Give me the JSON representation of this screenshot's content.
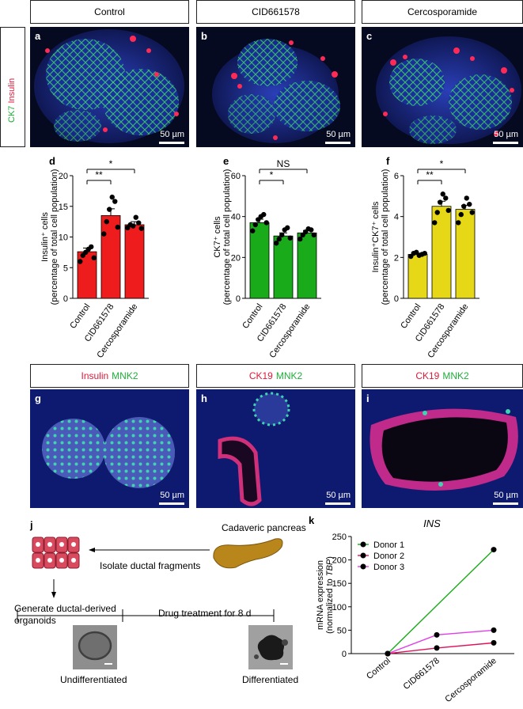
{
  "top_row": {
    "headers": [
      "Control",
      "CID661578",
      "Cercosporamide"
    ],
    "panel_letters": [
      "a",
      "b",
      "c"
    ],
    "stain_labels": {
      "ck7": "CK7",
      "insulin": "Insulin"
    },
    "scale_bar": "50 µm"
  },
  "bar_charts": [
    {
      "letter": "d",
      "type": "bar",
      "ylabel_main": "Insulin⁺ cells",
      "ylabel_sub": "(percentage of total cell population)",
      "categories": [
        "Control",
        "CID661578",
        "Cercosporamide"
      ],
      "values": [
        7.6,
        13.5,
        12.0
      ],
      "errors": [
        0.6,
        1.1,
        0.5
      ],
      "points": [
        [
          6.0,
          7.0,
          7.5,
          8.0,
          8.4,
          6.6
        ],
        [
          10.5,
          12.5,
          14.5,
          16.5,
          15.8,
          11.6
        ],
        [
          11.5,
          12.0,
          11.8,
          13.2,
          12.3,
          11.4
        ]
      ],
      "ylim": [
        0,
        20
      ],
      "yticks": [
        0,
        5,
        10,
        15,
        20
      ],
      "color": "#ee1c1c",
      "significance": [
        {
          "from": 0,
          "to": 1,
          "label": "**"
        },
        {
          "from": 0,
          "to": 2,
          "label": "*"
        }
      ]
    },
    {
      "letter": "e",
      "type": "bar",
      "ylabel_main": "CK7⁺ cells",
      "ylabel_sub": "(percentage of total cell population)",
      "categories": [
        "Control",
        "CID661578",
        "Cercosporamide"
      ],
      "values": [
        37.0,
        30.5,
        32.0
      ],
      "errors": [
        1.7,
        1.5,
        1.2
      ],
      "points": [
        [
          33.0,
          36.0,
          38.5,
          40.0,
          41.0,
          37.0
        ],
        [
          27.0,
          29.0,
          31.0,
          33.5,
          34.5,
          29.5
        ],
        [
          29.0,
          31.0,
          32.5,
          34.0,
          33.5,
          31.0
        ]
      ],
      "ylim": [
        0,
        60
      ],
      "yticks": [
        0,
        20,
        40,
        60
      ],
      "color": "#1aab1a",
      "significance": [
        {
          "from": 0,
          "to": 1,
          "label": "*"
        },
        {
          "from": 0,
          "to": 2,
          "label": "NS"
        }
      ]
    },
    {
      "letter": "f",
      "type": "bar",
      "ylabel_main": "Insulin⁺CK7⁺ cells",
      "ylabel_sub": "(percentage of total cell population)",
      "categories": [
        "Control",
        "CID661578",
        "Cercosporamide"
      ],
      "values": [
        2.15,
        4.5,
        4.35
      ],
      "errors": [
        0.06,
        0.25,
        0.2
      ],
      "points": [
        [
          2.05,
          2.2,
          2.25,
          2.1,
          2.15,
          2.2
        ],
        [
          3.7,
          4.2,
          4.7,
          5.1,
          4.9,
          4.3
        ],
        [
          3.7,
          4.1,
          4.5,
          4.9,
          4.6,
          4.2
        ]
      ],
      "ylim": [
        0,
        6
      ],
      "yticks": [
        0,
        2,
        4,
        6
      ],
      "color": "#e6d817",
      "significance": [
        {
          "from": 0,
          "to": 1,
          "label": "**"
        },
        {
          "from": 0,
          "to": 2,
          "label": "*"
        }
      ]
    }
  ],
  "mid_row": {
    "panels": [
      {
        "letter": "g",
        "label_red": "Insulin",
        "label_green": "MNK2"
      },
      {
        "letter": "h",
        "label_red": "CK19",
        "label_green": "MNK2"
      },
      {
        "letter": "i",
        "label_red": "CK19",
        "label_green": "MNK2"
      }
    ],
    "scale_bar": "50 µm"
  },
  "schematic": {
    "letter": "j",
    "source": "Cadaveric pancreas",
    "step1": "Isolate ductal fragments",
    "step2": "Generate ductal-derived organoids",
    "treatment": "Drug treatment for 8 d",
    "left_caption": "Undifferentiated",
    "right_caption": "Differentiated"
  },
  "line_chart": {
    "letter": "k",
    "type": "line",
    "title": "INS",
    "ylabel_main": "mRNA expression",
    "ylabel_sub_prefix": "(normalized to ",
    "ylabel_sub_gene": "TBP",
    "ylabel_sub_suffix": ")",
    "categories": [
      "Control",
      "CID661578",
      "Cercosporamide"
    ],
    "ylim": [
      0,
      250
    ],
    "yticks": [
      0,
      50,
      100,
      150,
      200,
      250
    ],
    "series": [
      {
        "name": "Donor 1",
        "color": "#1aab1a",
        "values": [
          0,
          null,
          222
        ]
      },
      {
        "name": "Donor 2",
        "color": "#e0105a",
        "values": [
          0,
          12,
          23
        ]
      },
      {
        "name": "Donor 3",
        "color": "#e23de6",
        "values": [
          0,
          40,
          50
        ]
      }
    ]
  }
}
